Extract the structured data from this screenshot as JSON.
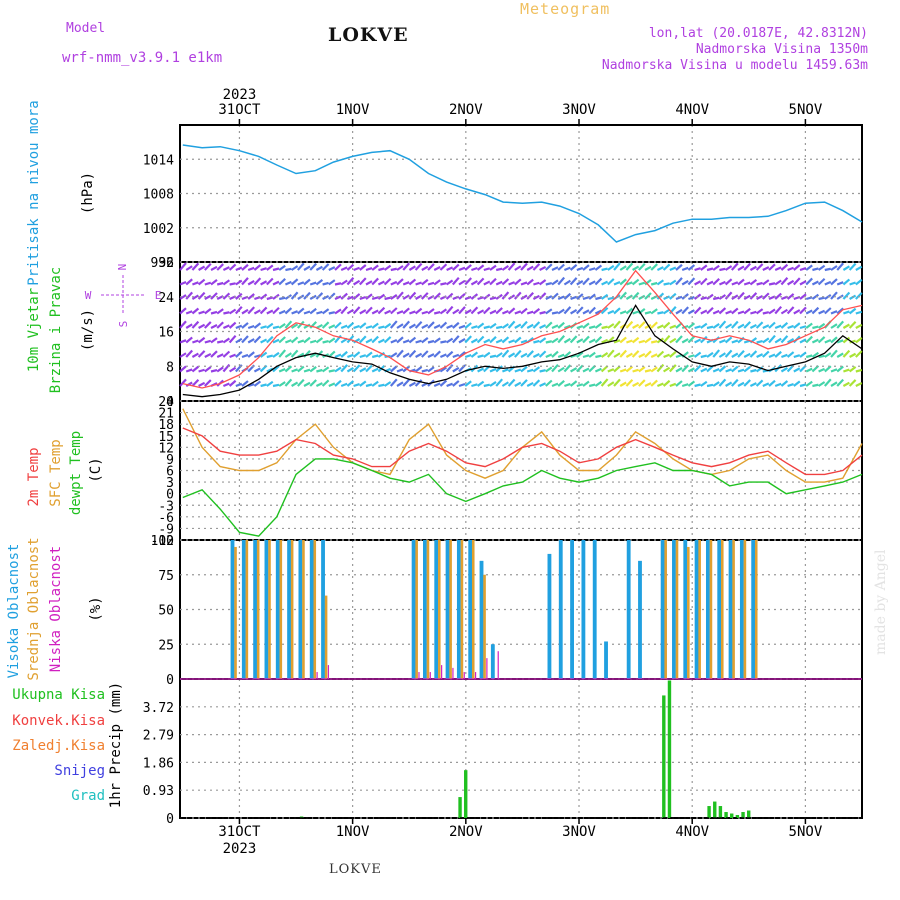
{
  "header": {
    "model_label": "Model",
    "model_name": "wrf-nmm_v3.9.1 e1km",
    "title": "LOKVE",
    "meteogram_label": "Meteogram",
    "coords": "lon,lat (20.0187E, 42.8312N)",
    "elevation": "Nadmorska Visina 1350m",
    "model_elevation": "Nadmorska Visina u modelu 1459.63m",
    "footer_title": "LOKVE",
    "watermark": "made by Angel"
  },
  "colors": {
    "model": "#b040e0",
    "meteogram": "#f0c060",
    "info": "#b040e0",
    "pressure": "#20a0e0",
    "wind_label": "#20c020",
    "temp2m": "#f04040",
    "sfc": "#e0a030",
    "dewpt": "#20c020",
    "visoka": "#20a0e0",
    "srednja": "#e0a030",
    "niska": "#d020c0",
    "ukupna": "#20c020",
    "konvek": "#f04040",
    "zaledj": "#f08030",
    "snijeg": "#4040e0",
    "grad": "#20c0c0"
  },
  "time_axis": {
    "year": "2023",
    "days": [
      "31OCT",
      "1NOV",
      "2NOV",
      "3NOV",
      "4NOV",
      "5NOV"
    ]
  },
  "chart_data": [
    {
      "type": "line",
      "panel": "pressure",
      "label": "Pritisak na nivou mora",
      "unit": "(hPa)",
      "yticks": [
        "1014",
        "1008",
        "1002",
        "996"
      ],
      "ylim": [
        996,
        1020
      ],
      "x": [
        -0.5,
        -0.33,
        -0.17,
        0.0,
        0.17,
        0.33,
        0.5,
        0.67,
        0.83,
        1.0,
        1.17,
        1.33,
        1.5,
        1.67,
        1.83,
        2.0,
        2.17,
        2.33,
        2.5,
        2.67,
        2.83,
        3.0,
        3.17,
        3.33,
        3.5,
        3.67,
        3.83,
        4.0,
        4.17,
        4.33,
        4.5,
        4.67,
        4.83,
        5.0,
        5.17,
        5.33,
        5.5
      ],
      "y": [
        1016.5,
        1016,
        1016.2,
        1015.5,
        1014.5,
        1013,
        1011.5,
        1012,
        1013.5,
        1014.5,
        1015.2,
        1015.5,
        1014,
        1011.5,
        1010,
        1008.8,
        1007.8,
        1006.5,
        1006.3,
        1006.5,
        1005.8,
        1004.5,
        1002.5,
        999.5,
        1000.8,
        1001.5,
        1002.8,
        1003.5,
        1003.5,
        1003.8,
        1003.8,
        1004,
        1005,
        1006.3,
        1006.5,
        1005,
        1003
      ]
    },
    {
      "type": "line",
      "panel": "wind",
      "label": "10m Vjetar Brzina i Pravac",
      "unit": "(m/s)",
      "compass": [
        "N",
        "S",
        "W",
        "E"
      ],
      "yticks": [
        "0",
        "8",
        "16",
        "24",
        "32"
      ],
      "ylim": [
        0,
        32
      ],
      "x": [
        -0.5,
        -0.33,
        -0.17,
        0.0,
        0.17,
        0.33,
        0.5,
        0.67,
        0.83,
        1.0,
        1.17,
        1.33,
        1.5,
        1.67,
        1.83,
        2.0,
        2.17,
        2.33,
        2.5,
        2.67,
        2.83,
        3.0,
        3.17,
        3.33,
        3.5,
        3.67,
        3.83,
        4.0,
        4.17,
        4.33,
        4.5,
        4.67,
        4.83,
        5.0,
        5.17,
        5.33,
        5.5
      ],
      "series": [
        {
          "name": "mean",
          "values": [
            1.5,
            1,
            1.5,
            2.5,
            5,
            8,
            10,
            11,
            10,
            9,
            8.5,
            6.5,
            5,
            4,
            5,
            7,
            8,
            7.5,
            8,
            9,
            9.5,
            11,
            13,
            14,
            22,
            15,
            12,
            9,
            8,
            9,
            8.5,
            7,
            8,
            9,
            11,
            15,
            12
          ]
        },
        {
          "name": "gust",
          "values": [
            4,
            3,
            4,
            6,
            10,
            15,
            18,
            17,
            15,
            14,
            12,
            10,
            7,
            6,
            8,
            11,
            13,
            12,
            13,
            15,
            16,
            18,
            20,
            24,
            30,
            25,
            20,
            15,
            14,
            15,
            14,
            12,
            13,
            15,
            17,
            21,
            22
          ]
        }
      ]
    },
    {
      "type": "line",
      "panel": "temperature",
      "labels": [
        "2m Temp",
        "SFC Temp",
        "dewpt Temp"
      ],
      "unit": "(C)",
      "yticks": [
        "24",
        "21",
        "18",
        "15",
        "12",
        "9",
        "6",
        "3",
        "0",
        "-3",
        "-6",
        "-9",
        "-12"
      ],
      "ylim": [
        -12,
        24
      ],
      "x": [
        -0.5,
        -0.33,
        -0.17,
        0.0,
        0.17,
        0.33,
        0.5,
        0.67,
        0.83,
        1.0,
        1.17,
        1.33,
        1.5,
        1.67,
        1.83,
        2.0,
        2.17,
        2.33,
        2.5,
        2.67,
        2.83,
        3.0,
        3.17,
        3.33,
        3.5,
        3.67,
        3.83,
        4.0,
        4.17,
        4.33,
        4.5,
        4.67,
        4.83,
        5.0,
        5.17,
        5.33,
        5.5
      ],
      "series": [
        {
          "name": "2m Temp",
          "values": [
            17,
            15,
            11,
            10,
            10,
            11,
            14,
            13,
            10,
            9,
            7,
            7,
            11,
            13,
            11,
            8,
            7,
            9,
            12,
            13,
            11,
            8,
            9,
            12,
            14,
            12,
            10,
            8,
            7,
            8,
            10,
            11,
            8,
            5,
            5,
            6,
            10
          ]
        },
        {
          "name": "SFC Temp",
          "values": [
            22,
            12,
            7,
            6,
            6,
            8,
            14,
            18,
            12,
            8,
            6,
            5,
            14,
            18,
            10,
            6,
            4,
            6,
            12,
            16,
            10,
            6,
            6,
            10,
            16,
            13,
            9,
            6,
            5,
            6,
            9,
            10,
            6,
            3,
            3,
            4,
            13
          ]
        },
        {
          "name": "dewpt Temp",
          "values": [
            -1,
            1,
            -4,
            -10,
            -11,
            -6,
            5,
            9,
            9,
            8,
            6,
            4,
            3,
            5,
            0,
            -2,
            0,
            2,
            3,
            6,
            4,
            3,
            4,
            6,
            7,
            8,
            6,
            6,
            5,
            2,
            3,
            3,
            0,
            1,
            2,
            3,
            5
          ]
        }
      ]
    },
    {
      "type": "bar",
      "panel": "clouds",
      "labels": [
        "Visoka Oblacnost",
        "Srednja Oblacnost",
        "Niska Oblacnost"
      ],
      "unit": "(%)",
      "yticks": [
        "100",
        "75",
        "50",
        "25",
        "0"
      ],
      "ylim": [
        0,
        100
      ],
      "x": [
        -0.05,
        0.05,
        0.15,
        0.25,
        0.35,
        0.45,
        0.55,
        0.65,
        0.75,
        1.55,
        1.65,
        1.75,
        1.85,
        1.95,
        2.05,
        2.15,
        2.25,
        2.75,
        2.85,
        2.95,
        3.05,
        3.15,
        3.25,
        3.45,
        3.55,
        3.75,
        3.85,
        3.95,
        4.05,
        4.15,
        4.25,
        4.35,
        4.45,
        4.55
      ],
      "series": [
        {
          "name": "Visoka Oblacnost",
          "values": [
            100,
            100,
            100,
            100,
            100,
            100,
            100,
            100,
            100,
            100,
            100,
            100,
            100,
            100,
            100,
            85,
            25,
            90,
            100,
            100,
            100,
            100,
            27,
            100,
            85,
            100,
            100,
            100,
            100,
            100,
            100,
            100,
            100,
            100
          ]
        },
        {
          "name": "Srednja Oblacnost",
          "values": [
            95,
            100,
            100,
            100,
            100,
            100,
            100,
            100,
            60,
            100,
            100,
            100,
            100,
            100,
            100,
            75,
            0,
            0,
            0,
            0,
            0,
            0,
            0,
            0,
            0,
            100,
            100,
            95,
            100,
            100,
            100,
            100,
            100,
            100
          ]
        },
        {
          "name": "Niska Oblacnost",
          "values": [
            0,
            0,
            0,
            0,
            0,
            0,
            0,
            5,
            10,
            5,
            5,
            10,
            8,
            5,
            5,
            15,
            20,
            0,
            0,
            0,
            0,
            0,
            0,
            0,
            0,
            0,
            0,
            0,
            0,
            0,
            0,
            0,
            0,
            0
          ]
        }
      ]
    },
    {
      "type": "bar",
      "panel": "precip",
      "labels": [
        "Ukupna Kisa",
        "Konvek.Kisa",
        "Zaledj.Kisa",
        "Snijeg",
        "Grad"
      ],
      "unit": "1hr Precip (mm)",
      "yticks": [
        "3.72",
        "2.79",
        "1.86",
        "0.93",
        "0"
      ],
      "ylim": [
        0,
        4.65
      ],
      "x": [
        -0.05,
        0.05,
        0.15,
        0.25,
        0.35,
        0.45,
        0.55,
        0.65,
        0.75,
        0.85,
        0.95,
        1.05,
        1.15,
        1.25,
        1.35,
        1.45,
        1.55,
        1.65,
        1.75,
        1.85,
        1.95,
        2.0,
        2.05,
        2.15,
        2.25,
        2.35,
        2.45,
        2.55,
        2.65,
        2.75,
        2.85,
        2.95,
        3.05,
        3.15,
        3.25,
        3.35,
        3.45,
        3.55,
        3.65,
        3.75,
        3.8,
        3.85,
        3.95,
        4.05,
        4.15,
        4.2,
        4.25,
        4.3,
        4.35,
        4.4,
        4.45,
        4.5,
        4.55
      ],
      "values": [
        0,
        0,
        0,
        0,
        0,
        0,
        0.05,
        0,
        0,
        0,
        0,
        0,
        0,
        0,
        0,
        0,
        0,
        0,
        0,
        0,
        0.7,
        1.6,
        0,
        0,
        0,
        0,
        0,
        0,
        0,
        0,
        0,
        0,
        0,
        0,
        0,
        0,
        0,
        0,
        0,
        4.1,
        4.6,
        0,
        0,
        0,
        0.4,
        0.55,
        0.4,
        0.2,
        0.15,
        0.1,
        0.2,
        0.25,
        0
      ]
    }
  ]
}
